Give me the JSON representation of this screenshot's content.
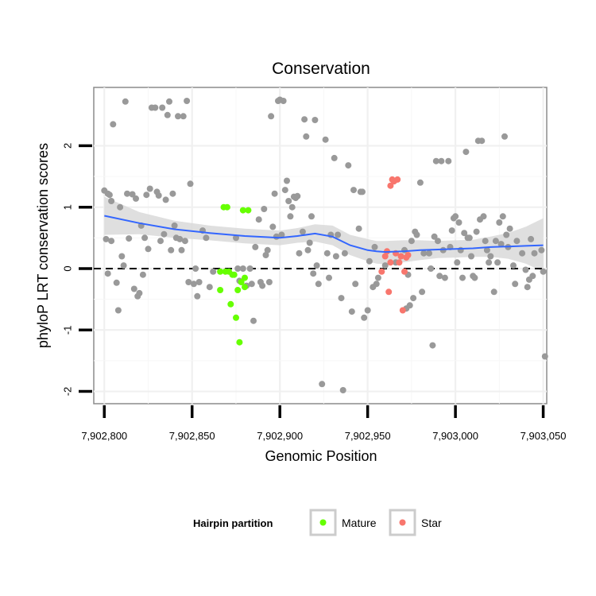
{
  "chart_data": {
    "type": "scatter",
    "title": "Conservation",
    "xlabel": "Genomic Position",
    "ylabel": "phyloP LRT conservation scores",
    "xlim": [
      7902794,
      7903052
    ],
    "ylim": [
      -2.2,
      2.95
    ],
    "x_ticks": [
      {
        "value": 7902800,
        "label": "7,902,800"
      },
      {
        "value": 7902850,
        "label": "7,902,850"
      },
      {
        "value": 7902900,
        "label": "7,902,900"
      },
      {
        "value": 7902950,
        "label": "7,902,950"
      },
      {
        "value": 7903000,
        "label": "7,903,000"
      },
      {
        "value": 7903050,
        "label": "7,903,050"
      }
    ],
    "y_ticks": [
      {
        "value": -2,
        "label": "-2"
      },
      {
        "value": -1,
        "label": "-1"
      },
      {
        "value": 0,
        "label": "0"
      },
      {
        "value": 1,
        "label": "1"
      },
      {
        "value": 2,
        "label": "2"
      }
    ],
    "reference_line": {
      "y": 0,
      "style": "dashed"
    },
    "legend": {
      "title": "Hairpin partition",
      "position": "bottom",
      "entries": [
        {
          "label": "Mature",
          "color": "#66ff00"
        },
        {
          "label": "Star",
          "color": "#f8766d"
        }
      ]
    },
    "colors": {
      "other": "#999999",
      "Mature": "#66ff00",
      "Star": "#f8766d",
      "smooth": "#3366ff",
      "ribbon": "#d9d9d9"
    },
    "series": [
      {
        "name": "Other",
        "points": [
          [
            7902800,
            1.27
          ],
          [
            7902801,
            0.48
          ],
          [
            7902802,
            -0.08
          ],
          [
            7902802,
            1.22
          ],
          [
            7902803,
            1.2
          ],
          [
            7902804,
            0.45
          ],
          [
            7902804,
            1.1
          ],
          [
            7902805,
            2.35
          ],
          [
            7902807,
            -0.23
          ],
          [
            7902808,
            -0.68
          ],
          [
            7902809,
            1.0
          ],
          [
            7902810,
            0.2
          ],
          [
            7902811,
            0.05
          ],
          [
            7902812,
            2.72
          ],
          [
            7902813,
            1.22
          ],
          [
            7902814,
            0.49
          ],
          [
            7902816,
            1.21
          ],
          [
            7902817,
            -0.33
          ],
          [
            7902818,
            1.14
          ],
          [
            7902819,
            -0.45
          ],
          [
            7902820,
            -0.4
          ],
          [
            7902821,
            0.7
          ],
          [
            7902822,
            -0.1
          ],
          [
            7902823,
            0.5
          ],
          [
            7902824,
            1.2
          ],
          [
            7902825,
            0.32
          ],
          [
            7902826,
            1.3
          ],
          [
            7902827,
            2.62
          ],
          [
            7902829,
            2.62
          ],
          [
            7902830,
            1.25
          ],
          [
            7902831,
            1.19
          ],
          [
            7902832,
            0.45
          ],
          [
            7902833,
            2.62
          ],
          [
            7902834,
            0.56
          ],
          [
            7902835,
            1.12
          ],
          [
            7902836,
            2.5
          ],
          [
            7902837,
            2.72
          ],
          [
            7902838,
            0.3
          ],
          [
            7902839,
            1.22
          ],
          [
            7902840,
            0.7
          ],
          [
            7902841,
            0.5
          ],
          [
            7902842,
            2.48
          ],
          [
            7902843,
            0.48
          ],
          [
            7902844,
            0.3
          ],
          [
            7902845,
            2.48
          ],
          [
            7902846,
            0.45
          ],
          [
            7902847,
            2.73
          ],
          [
            7902848,
            -0.22
          ],
          [
            7902849,
            1.38
          ],
          [
            7902851,
            -0.25
          ],
          [
            7902852,
            0.0
          ],
          [
            7902853,
            -0.45
          ],
          [
            7902854,
            -0.22
          ],
          [
            7902856,
            0.62
          ],
          [
            7902858,
            0.5
          ],
          [
            7902860,
            -0.3
          ],
          [
            7902862,
            -0.05
          ],
          [
            7902875,
            0.5
          ],
          [
            7902876,
            0.0
          ],
          [
            7902877,
            -0.2
          ],
          [
            7902879,
            0.0
          ],
          [
            7902881,
            -0.28
          ],
          [
            7902883,
            0.0
          ],
          [
            7902884,
            -0.25
          ],
          [
            7902885,
            -0.85
          ],
          [
            7902886,
            0.35
          ],
          [
            7902888,
            0.8
          ],
          [
            7902889,
            -0.22
          ],
          [
            7902890,
            -0.28
          ],
          [
            7902891,
            0.97
          ],
          [
            7902892,
            0.22
          ],
          [
            7902893,
            0.3
          ],
          [
            7902894,
            -0.22
          ],
          [
            7902895,
            2.48
          ],
          [
            7902896,
            0.68
          ],
          [
            7902897,
            1.22
          ],
          [
            7902898,
            0.52
          ],
          [
            7902899,
            2.73
          ],
          [
            7902900,
            2.75
          ],
          [
            7902901,
            0.55
          ],
          [
            7902902,
            2.73
          ],
          [
            7902903,
            1.28
          ],
          [
            7902904,
            1.43
          ],
          [
            7902905,
            1.1
          ],
          [
            7902906,
            0.85
          ],
          [
            7902907,
            1.0
          ],
          [
            7902908,
            1.17
          ],
          [
            7902909,
            1.15
          ],
          [
            7902910,
            1.18
          ],
          [
            7902911,
            0.25
          ],
          [
            7902913,
            0.6
          ],
          [
            7902914,
            2.43
          ],
          [
            7902915,
            2.15
          ],
          [
            7902916,
            0.3
          ],
          [
            7902917,
            0.42
          ],
          [
            7902918,
            0.85
          ],
          [
            7902919,
            -0.08
          ],
          [
            7902920,
            2.42
          ],
          [
            7902921,
            0.05
          ],
          [
            7902922,
            -0.25
          ],
          [
            7902924,
            -1.88
          ],
          [
            7902926,
            2.1
          ],
          [
            7902927,
            0.25
          ],
          [
            7902928,
            -0.15
          ],
          [
            7902929,
            0.55
          ],
          [
            7902931,
            1.8
          ],
          [
            7902932,
            0.2
          ],
          [
            7902933,
            0.55
          ],
          [
            7902935,
            -0.48
          ],
          [
            7902936,
            -1.98
          ],
          [
            7902937,
            0.25
          ],
          [
            7902939,
            1.68
          ],
          [
            7902941,
            -0.7
          ],
          [
            7902942,
            1.28
          ],
          [
            7902943,
            -0.25
          ],
          [
            7902945,
            0.65
          ],
          [
            7902946,
            1.25
          ],
          [
            7902947,
            1.25
          ],
          [
            7902948,
            -0.8
          ],
          [
            7902950,
            -0.68
          ],
          [
            7902951,
            0.12
          ],
          [
            7902953,
            -0.3
          ],
          [
            7902954,
            0.35
          ],
          [
            7902955,
            -0.25
          ],
          [
            7902956,
            -0.15
          ],
          [
            7902960,
            0.05
          ],
          [
            7902966,
            0.1
          ],
          [
            7902969,
            0.2
          ],
          [
            7902971,
            0.3
          ],
          [
            7902972,
            -0.65
          ],
          [
            7902973,
            -0.1
          ],
          [
            7902974,
            -0.6
          ],
          [
            7902975,
            0.45
          ],
          [
            7902976,
            -0.48
          ],
          [
            7902977,
            0.6
          ],
          [
            7902978,
            0.55
          ],
          [
            7902980,
            1.4
          ],
          [
            7902981,
            -0.38
          ],
          [
            7902982,
            0.25
          ],
          [
            7902985,
            0.25
          ],
          [
            7902986,
            0.0
          ],
          [
            7902987,
            -1.25
          ],
          [
            7902988,
            0.52
          ],
          [
            7902989,
            1.75
          ],
          [
            7902990,
            0.45
          ],
          [
            7902991,
            -0.12
          ],
          [
            7902992,
            1.75
          ],
          [
            7902993,
            0.3
          ],
          [
            7902994,
            -0.15
          ],
          [
            7902996,
            1.75
          ],
          [
            7902997,
            0.35
          ],
          [
            7902998,
            0.62
          ],
          [
            7902999,
            0.82
          ],
          [
            7903000,
            0.85
          ],
          [
            7903001,
            0.1
          ],
          [
            7903002,
            0.75
          ],
          [
            7903003,
            0.3
          ],
          [
            7903004,
            -0.15
          ],
          [
            7903005,
            0.58
          ],
          [
            7903006,
            1.9
          ],
          [
            7903007,
            0.5
          ],
          [
            7903008,
            0.5
          ],
          [
            7903009,
            0.2
          ],
          [
            7903010,
            -0.12
          ],
          [
            7903011,
            -0.15
          ],
          [
            7903012,
            0.6
          ],
          [
            7903013,
            2.08
          ],
          [
            7903014,
            0.8
          ],
          [
            7903015,
            2.08
          ],
          [
            7903016,
            0.85
          ],
          [
            7903017,
            0.45
          ],
          [
            7903018,
            0.3
          ],
          [
            7903019,
            0.1
          ],
          [
            7903020,
            0.2
          ],
          [
            7903022,
            -0.38
          ],
          [
            7903023,
            0.45
          ],
          [
            7903024,
            0.1
          ],
          [
            7903025,
            0.75
          ],
          [
            7903026,
            0.4
          ],
          [
            7903027,
            0.85
          ],
          [
            7903028,
            2.15
          ],
          [
            7903029,
            0.55
          ],
          [
            7903030,
            0.35
          ],
          [
            7903031,
            0.65
          ],
          [
            7903033,
            0.05
          ],
          [
            7903034,
            -0.25
          ],
          [
            7903035,
            0.45
          ],
          [
            7903038,
            0.25
          ],
          [
            7903040,
            -0.02
          ],
          [
            7903041,
            -0.3
          ],
          [
            7903042,
            -0.18
          ],
          [
            7903043,
            0.48
          ],
          [
            7903044,
            -0.12
          ],
          [
            7903045,
            0.25
          ],
          [
            7903049,
            0.3
          ],
          [
            7903050,
            -0.05
          ],
          [
            7903051,
            -1.43
          ]
        ]
      },
      {
        "name": "Mature",
        "points": [
          [
            7902866,
            -0.05
          ],
          [
            7902866,
            -0.35
          ],
          [
            7902868,
            1.0
          ],
          [
            7902869,
            -0.05
          ],
          [
            7902870,
            1.0
          ],
          [
            7902871,
            -0.05
          ],
          [
            7902872,
            -0.58
          ],
          [
            7902873,
            -0.1
          ],
          [
            7902874,
            -0.1
          ],
          [
            7902875,
            -0.8
          ],
          [
            7902876,
            -0.35
          ],
          [
            7902877,
            -1.2
          ],
          [
            7902878,
            -0.22
          ],
          [
            7902879,
            0.95
          ],
          [
            7902880,
            -0.3
          ],
          [
            7902880,
            -0.15
          ],
          [
            7902882,
            0.95
          ]
        ]
      },
      {
        "name": "Star",
        "points": [
          [
            7902958,
            -0.05
          ],
          [
            7902960,
            0.2
          ],
          [
            7902961,
            0.28
          ],
          [
            7902962,
            -0.38
          ],
          [
            7902963,
            1.35
          ],
          [
            7902963,
            0.1
          ],
          [
            7902964,
            1.45
          ],
          [
            7902965,
            1.42
          ],
          [
            7902966,
            0.25
          ],
          [
            7902967,
            1.45
          ],
          [
            7902968,
            0.1
          ],
          [
            7902969,
            0.2
          ],
          [
            7902970,
            -0.68
          ],
          [
            7902971,
            -0.05
          ],
          [
            7902972,
            0.18
          ],
          [
            7902973,
            0.22
          ]
        ]
      }
    ],
    "smooth": {
      "x": [
        7902800,
        7902820,
        7902840,
        7902860,
        7902880,
        7902900,
        7902910,
        7902920,
        7902930,
        7902940,
        7902950,
        7902955,
        7902960,
        7902970,
        7902980,
        7902990,
        7903000,
        7903010,
        7903020,
        7903030,
        7903040,
        7903050
      ],
      "y": [
        0.86,
        0.74,
        0.64,
        0.58,
        0.53,
        0.5,
        0.53,
        0.57,
        0.52,
        0.38,
        0.3,
        0.28,
        0.27,
        0.28,
        0.3,
        0.31,
        0.32,
        0.33,
        0.35,
        0.36,
        0.37,
        0.38
      ],
      "lower": [
        0.55,
        0.56,
        0.5,
        0.46,
        0.41,
        0.38,
        0.42,
        0.44,
        0.38,
        0.22,
        0.12,
        0.08,
        0.07,
        0.1,
        0.14,
        0.17,
        0.18,
        0.19,
        0.19,
        0.16,
        0.08,
        -0.05
      ],
      "upper": [
        1.17,
        0.92,
        0.78,
        0.7,
        0.65,
        0.62,
        0.66,
        0.72,
        0.7,
        0.55,
        0.48,
        0.45,
        0.45,
        0.46,
        0.46,
        0.45,
        0.46,
        0.47,
        0.52,
        0.58,
        0.68,
        0.82
      ]
    }
  }
}
